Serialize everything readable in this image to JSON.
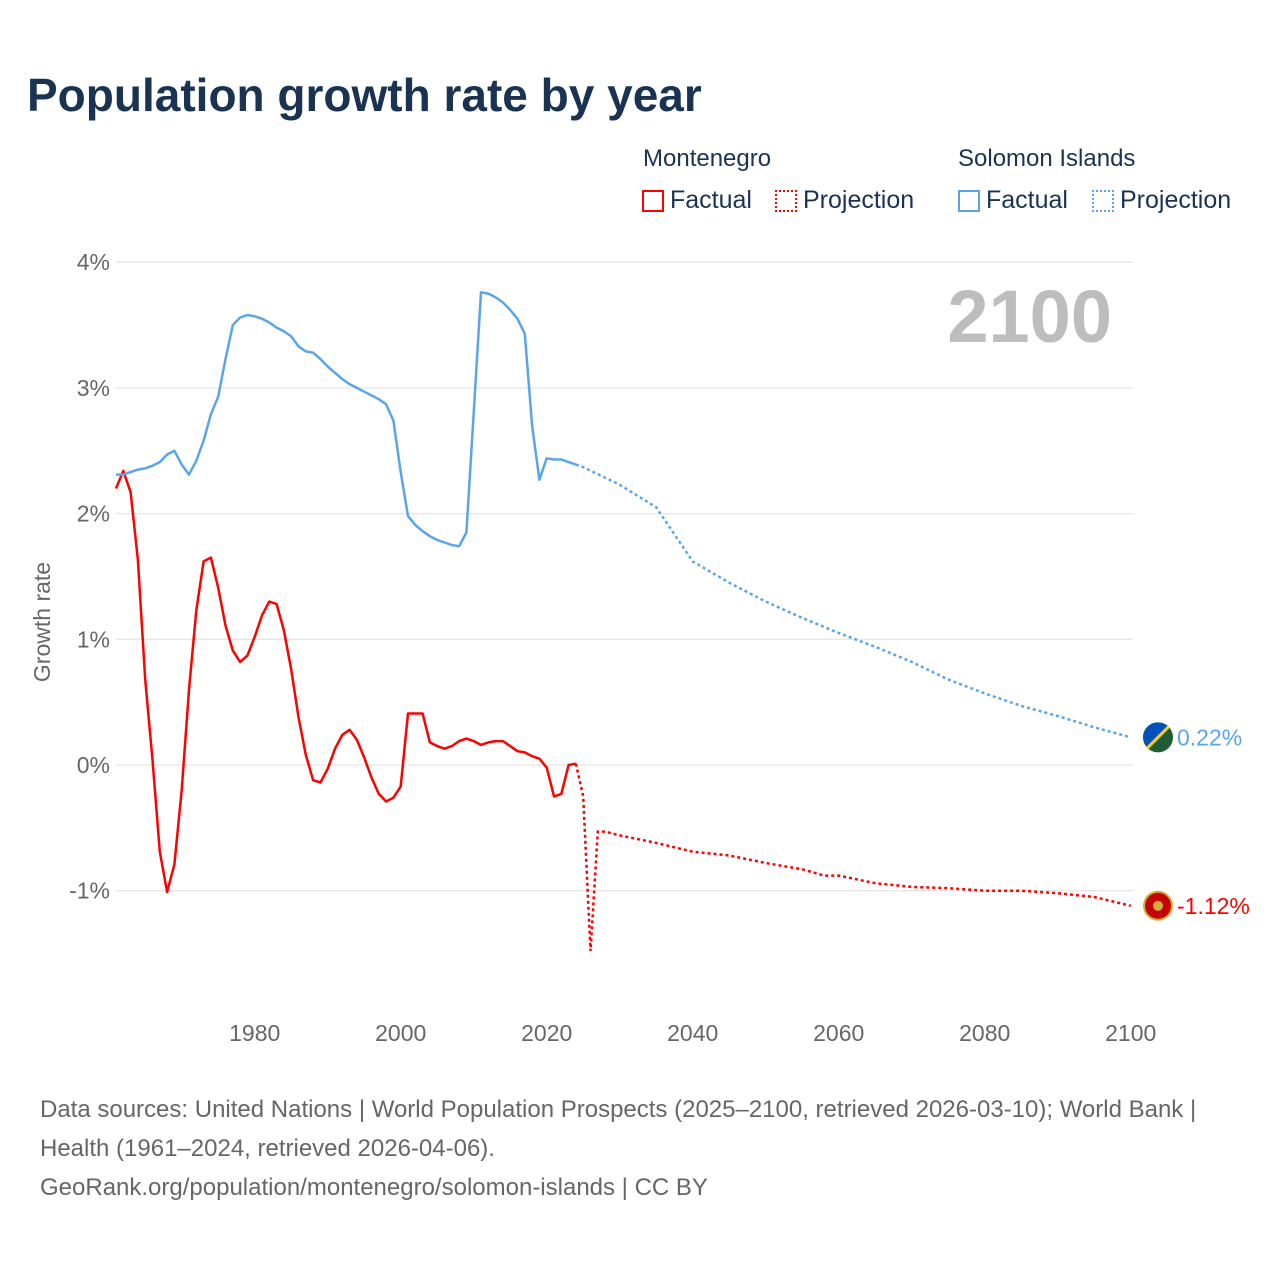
{
  "title": "Population growth rate by year",
  "legend": {
    "montenegro": {
      "name": "Montenegro",
      "factual": "Factual",
      "projection": "Projection",
      "color": "#ff0000"
    },
    "solomon": {
      "name": "Solomon Islands",
      "factual": "Factual",
      "projection": "Projection",
      "color": "#5aa5ea"
    }
  },
  "footer": {
    "line1": "Data sources: United Nations | World Population Prospects (2025–2100, retrieved 2026-03-10); World Bank | Health (1961–2024, retrieved 2026-04-06).",
    "line2": "GeoRank.org/population/montenegro/solomon-islands | CC BY"
  },
  "chart_data": {
    "type": "line",
    "title": "Population growth rate by year",
    "ylabel": "Growth rate",
    "xlabel": "",
    "current_year_label": "2100",
    "xlim": [
      1961,
      2100
    ],
    "ylim": [
      -1.8,
      4.0
    ],
    "x_ticks": [
      "1980",
      "2000",
      "2020",
      "2040",
      "2060",
      "2080",
      "2100"
    ],
    "y_ticks": [
      {
        "v": 4,
        "label": "4%"
      },
      {
        "v": 3,
        "label": "3%"
      },
      {
        "v": 2,
        "label": "2%"
      },
      {
        "v": 1,
        "label": "1%"
      },
      {
        "v": 0,
        "label": "0%"
      },
      {
        "v": -1,
        "label": "-1%"
      }
    ],
    "grid": true,
    "series": [
      {
        "name": "Montenegro",
        "color": "#ff0000",
        "end_label": "-1.12%",
        "factual": {
          "x": [
            1961,
            1962,
            1963,
            1964,
            1965,
            1966,
            1967,
            1968,
            1969,
            1970,
            1971,
            1972,
            1973,
            1974,
            1975,
            1976,
            1977,
            1978,
            1979,
            1980,
            1981,
            1982,
            1983,
            1984,
            1985,
            1986,
            1987,
            1988,
            1989,
            1990,
            1991,
            1992,
            1993,
            1994,
            1995,
            1996,
            1997,
            1998,
            1999,
            2000,
            2001,
            2002,
            2003,
            2004,
            2005,
            2006,
            2007,
            2008,
            2009,
            2010,
            2011,
            2012,
            2013,
            2014,
            2015,
            2016,
            2017,
            2018,
            2019,
            2020,
            2021,
            2022,
            2023,
            2024
          ],
          "y": [
            2.2,
            2.34,
            2.17,
            1.63,
            0.68,
            0.04,
            -0.69,
            -1.01,
            -0.79,
            -0.2,
            0.6,
            1.23,
            1.62,
            1.65,
            1.41,
            1.11,
            0.91,
            0.82,
            0.87,
            1.02,
            1.19,
            1.3,
            1.28,
            1.07,
            0.76,
            0.38,
            0.08,
            -0.12,
            -0.14,
            -0.03,
            0.13,
            0.24,
            0.28,
            0.2,
            0.06,
            -0.1,
            -0.23,
            -0.29,
            -0.26,
            -0.17,
            0.41,
            0.41,
            0.41,
            0.18,
            0.15,
            0.13,
            0.15,
            0.19,
            0.21,
            0.19,
            0.16,
            0.18,
            0.19,
            0.19,
            0.15,
            0.11,
            0.1,
            0.07,
            0.05,
            -0.02,
            -0.25,
            -0.23,
            0.0,
            0.01
          ]
        },
        "projection": {
          "x": [
            2024,
            2025,
            2026,
            2027,
            2028,
            2030,
            2035,
            2040,
            2045,
            2050,
            2055,
            2058,
            2060,
            2065,
            2070,
            2075,
            2080,
            2085,
            2090,
            2095,
            2100
          ],
          "y": [
            0.01,
            -0.25,
            -1.48,
            -0.53,
            -0.53,
            -0.56,
            -0.62,
            -0.69,
            -0.72,
            -0.78,
            -0.83,
            -0.88,
            -0.88,
            -0.94,
            -0.97,
            -0.98,
            -1.0,
            -1.0,
            -1.02,
            -1.05,
            -1.12
          ]
        }
      },
      {
        "name": "Solomon Islands",
        "color": "#5aa5ea",
        "end_label": "0.22%",
        "factual": {
          "x": [
            1961,
            1962,
            1963,
            1964,
            1965,
            1966,
            1967,
            1968,
            1969,
            1970,
            1971,
            1972,
            1973,
            1974,
            1975,
            1976,
            1977,
            1978,
            1979,
            1980,
            1981,
            1982,
            1983,
            1984,
            1985,
            1986,
            1987,
            1988,
            1989,
            1990,
            1991,
            1992,
            1993,
            1994,
            1995,
            1996,
            1997,
            1998,
            1999,
            2000,
            2001,
            2002,
            2003,
            2004,
            2005,
            2006,
            2007,
            2008,
            2009,
            2010,
            2011,
            2012,
            2013,
            2014,
            2015,
            2016,
            2017,
            2018,
            2019,
            2020,
            2021,
            2022,
            2023,
            2024
          ],
          "y": [
            2.31,
            2.31,
            2.33,
            2.35,
            2.36,
            2.38,
            2.41,
            2.47,
            2.5,
            2.39,
            2.31,
            2.42,
            2.58,
            2.79,
            2.93,
            3.23,
            3.5,
            3.56,
            3.58,
            3.57,
            3.55,
            3.52,
            3.48,
            3.45,
            3.41,
            3.33,
            3.29,
            3.28,
            3.23,
            3.17,
            3.12,
            3.07,
            3.03,
            3.0,
            2.97,
            2.94,
            2.91,
            2.87,
            2.74,
            2.33,
            1.98,
            1.91,
            1.86,
            1.82,
            1.79,
            1.77,
            1.75,
            1.74,
            1.85,
            2.8,
            3.76,
            3.75,
            3.72,
            3.68,
            3.62,
            3.55,
            3.43,
            2.7,
            2.27,
            2.44,
            2.43,
            2.43,
            2.41,
            2.39
          ]
        },
        "projection": {
          "x": [
            2024,
            2025,
            2030,
            2035,
            2040,
            2045,
            2050,
            2055,
            2060,
            2065,
            2070,
            2075,
            2080,
            2085,
            2090,
            2095,
            2100
          ],
          "y": [
            2.39,
            2.37,
            2.23,
            2.05,
            1.62,
            1.45,
            1.3,
            1.17,
            1.05,
            0.94,
            0.82,
            0.68,
            0.57,
            0.47,
            0.39,
            0.3,
            0.22
          ]
        }
      }
    ]
  }
}
